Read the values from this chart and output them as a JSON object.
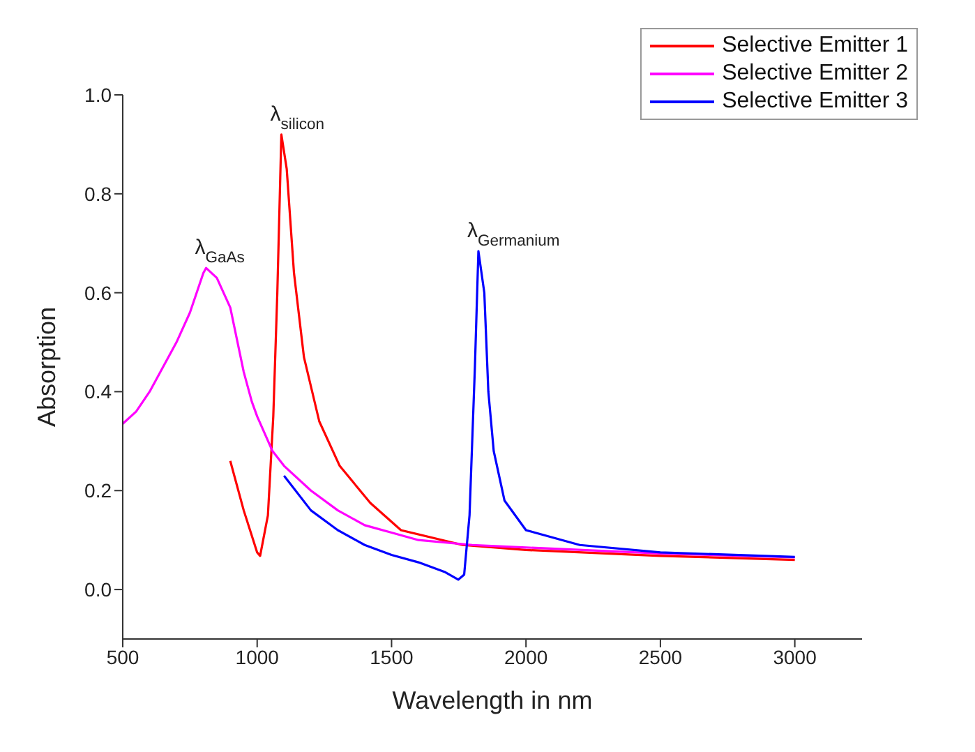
{
  "chart_data": {
    "type": "line",
    "xlabel": "Wavelength in nm",
    "ylabel": "Absorption",
    "xlim": [
      500,
      3250
    ],
    "xticks": [
      500,
      1000,
      1500,
      2000,
      2500,
      3000
    ],
    "ylim": [
      -0.1,
      1.0
    ],
    "yticks": [
      {
        "value": 0,
        "label": "0.0"
      },
      {
        "value": 0.2,
        "label": "0.2"
      },
      {
        "value": 0.4,
        "label": "0.4"
      },
      {
        "value": 0.6,
        "label": "0.6"
      },
      {
        "value": 0.8,
        "label": "0.8"
      },
      {
        "value": 1,
        "label": "1.0"
      }
    ],
    "grid": false,
    "legend": "top right",
    "marker": "none",
    "line_style": "solid",
    "series": [
      {
        "name": "Selective Emitter 1",
        "color": "#ff0000",
        "x": [
          900,
          950,
          1000,
          1011,
          1040,
          1060,
          1075,
          1090,
          1110,
          1137,
          1174,
          1231,
          1307,
          1421,
          1535,
          1764,
          2000,
          2500,
          3000
        ],
        "values": [
          0.26,
          0.16,
          0.075,
          0.068,
          0.15,
          0.35,
          0.6,
          0.92,
          0.85,
          0.64,
          0.47,
          0.34,
          0.25,
          0.175,
          0.12,
          0.09,
          0.08,
          0.068,
          0.06
        ]
      },
      {
        "name": "Selective Emitter 2",
        "color": "#ff00ff",
        "x": [
          500,
          550,
          600,
          650,
          700,
          750,
          800,
          810,
          850,
          900,
          950,
          980,
          1000,
          1057,
          1100,
          1200,
          1300,
          1400,
          1500,
          1600,
          1800,
          2000,
          2500,
          3000
        ],
        "values": [
          0.335,
          0.36,
          0.4,
          0.45,
          0.5,
          0.56,
          0.64,
          0.65,
          0.63,
          0.57,
          0.44,
          0.38,
          0.35,
          0.28,
          0.25,
          0.2,
          0.16,
          0.13,
          0.115,
          0.1,
          0.09,
          0.085,
          0.073,
          0.065
        ]
      },
      {
        "name": "Selective Emitter 3",
        "color": "#0000ff",
        "x": [
          1100,
          1200,
          1300,
          1400,
          1500,
          1600,
          1700,
          1748,
          1770,
          1790,
          1810,
          1823,
          1845,
          1860,
          1880,
          1920,
          2000,
          2200,
          2500,
          3000
        ],
        "values": [
          0.23,
          0.16,
          0.12,
          0.09,
          0.07,
          0.055,
          0.035,
          0.02,
          0.03,
          0.15,
          0.45,
          0.684,
          0.6,
          0.4,
          0.28,
          0.18,
          0.12,
          0.09,
          0.075,
          0.066
        ]
      }
    ],
    "annotations": [
      {
        "text": "λ$_{silicon}$",
        "x": 1090,
        "y": 0.92
      },
      {
        "text": "λ$_{GaAs}$",
        "x": 810,
        "y": 0.65
      },
      {
        "text": "λ$_{Germanium}$",
        "x": 1823,
        "y": 0.684
      }
    ]
  }
}
